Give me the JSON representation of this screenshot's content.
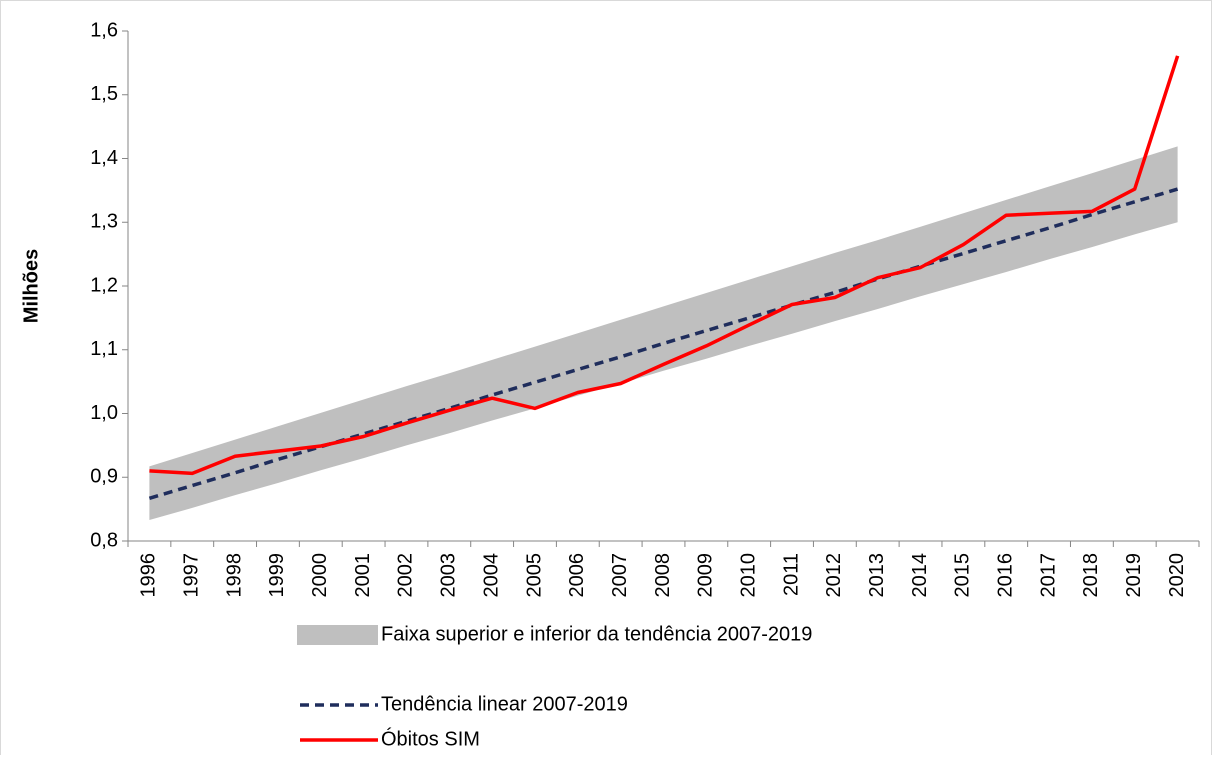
{
  "chart_data": {
    "type": "line",
    "y_label": "Milhões",
    "categories": [
      "1996",
      "1997",
      "1998",
      "1999",
      "2000",
      "2001",
      "2002",
      "2003",
      "2004",
      "2005",
      "2006",
      "2007",
      "2008",
      "2009",
      "2010",
      "2011",
      "2012",
      "2013",
      "2014",
      "2015",
      "2016",
      "2017",
      "2018",
      "2019",
      "2020"
    ],
    "ylim": [
      0.8,
      1.6
    ],
    "yticks": [
      {
        "value": 0.8,
        "label": "0,8"
      },
      {
        "value": 0.9,
        "label": "0,9"
      },
      {
        "value": 1.0,
        "label": "1,0"
      },
      {
        "value": 1.1,
        "label": "1,1"
      },
      {
        "value": 1.2,
        "label": "1,2"
      },
      {
        "value": 1.3,
        "label": "1,3"
      },
      {
        "value": 1.4,
        "label": "1,4"
      },
      {
        "value": 1.5,
        "label": "1,5"
      },
      {
        "value": 1.6,
        "label": "1,6"
      }
    ],
    "series": [
      {
        "name": "Faixa superior e inferior da tendência 2007-2019",
        "kind": "band",
        "color": "#bfbfbf",
        "high": [
          0.917,
          0.938,
          0.959,
          0.98,
          1.001,
          1.022,
          1.043,
          1.063,
          1.084,
          1.105,
          1.126,
          1.147,
          1.168,
          1.189,
          1.21,
          1.231,
          1.252,
          1.272,
          1.293,
          1.314,
          1.335,
          1.356,
          1.377,
          1.398,
          1.419
        ],
        "low": [
          0.833,
          0.852,
          0.872,
          0.891,
          0.911,
          0.93,
          0.95,
          0.969,
          0.989,
          1.008,
          1.028,
          1.047,
          1.067,
          1.086,
          1.106,
          1.125,
          1.145,
          1.164,
          1.184,
          1.203,
          1.222,
          1.242,
          1.261,
          1.281,
          1.3
        ]
      },
      {
        "name": "Tendência linear 2007-2019",
        "kind": "dashed",
        "color": "#1f2d5c",
        "values": [
          0.867,
          0.887,
          0.907,
          0.928,
          0.948,
          0.968,
          0.988,
          1.008,
          1.029,
          1.049,
          1.069,
          1.089,
          1.11,
          1.13,
          1.15,
          1.17,
          1.19,
          1.211,
          1.231,
          1.251,
          1.271,
          1.291,
          1.312,
          1.332,
          1.352
        ]
      },
      {
        "name": "Óbitos SIM",
        "kind": "solid",
        "color": "#ff0000",
        "values": [
          0.91,
          0.906,
          0.933,
          0.941,
          0.949,
          0.964,
          0.985,
          1.005,
          1.024,
          1.008,
          1.033,
          1.047,
          1.077,
          1.106,
          1.139,
          1.171,
          1.182,
          1.213,
          1.229,
          1.265,
          1.311,
          1.314,
          1.317,
          1.352,
          1.561
        ]
      }
    ]
  }
}
